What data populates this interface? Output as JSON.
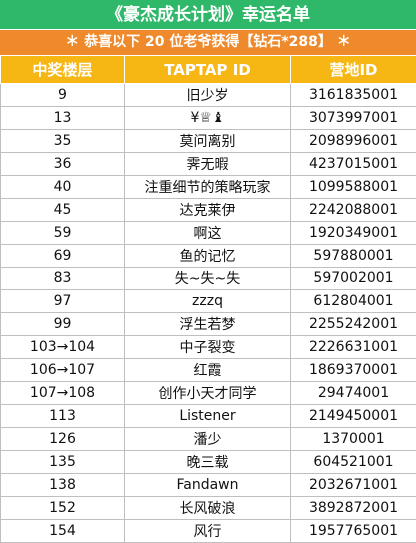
{
  "header": {
    "title": "《豪杰成长计划》幸运名单",
    "subtitle": "＊ 恭喜以下 20 位老爷获得【钻石*288】 ＊"
  },
  "table": {
    "columns": [
      "中奖楼层",
      "TAPTAP ID",
      "营地ID"
    ],
    "rows": [
      [
        "9",
        "旧少岁",
        "3161835001"
      ],
      [
        "13",
        "¥♕♝",
        "3073997001"
      ],
      [
        "35",
        "莫问离别",
        "2098996001"
      ],
      [
        "36",
        "霁无暇",
        "4237015001"
      ],
      [
        "40",
        "注重细节的策略玩家",
        "1099588001"
      ],
      [
        "45",
        "达克莱伊",
        "2242088001"
      ],
      [
        "59",
        "啊这",
        "1920349001"
      ],
      [
        "69",
        "鱼的记忆",
        "597880001"
      ],
      [
        "83",
        "失~失~失",
        "597002001"
      ],
      [
        "97",
        "zzzq",
        "612804001"
      ],
      [
        "99",
        "浮生若梦",
        "2255242001"
      ],
      [
        "103→104",
        "中子裂变",
        "2226631001"
      ],
      [
        "106→107",
        "红霞",
        "1869370001"
      ],
      [
        "107→108",
        "创作小天才同学",
        "29474001"
      ],
      [
        "113",
        "Listener",
        "2149450001"
      ],
      [
        "126",
        "潘少",
        "1370001"
      ],
      [
        "135",
        "晚三载",
        "604521001"
      ],
      [
        "138",
        "Fandawn",
        "2032671001"
      ],
      [
        "152",
        "长风破浪",
        "3892872001"
      ],
      [
        "154",
        "风行",
        "1957765001"
      ]
    ]
  }
}
